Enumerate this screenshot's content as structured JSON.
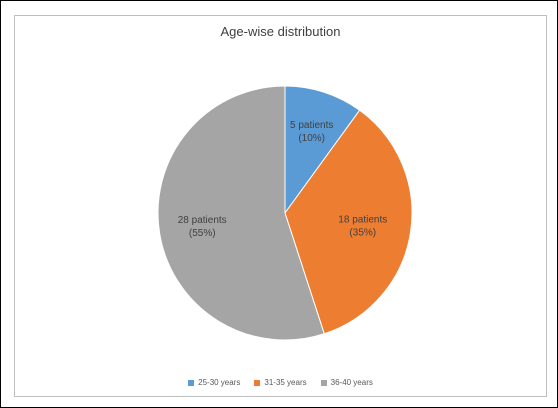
{
  "chart_data": {
    "type": "pie",
    "title": "Age-wise distribution",
    "slices": [
      {
        "name": "25-30 years",
        "value": 10,
        "label_line1": "5 patients",
        "label_line2": "(10%)",
        "color": "#5b9bd5"
      },
      {
        "name": "31-35 years",
        "value": 35,
        "label_line1": "18 patients",
        "label_line2": "(35%)",
        "color": "#ed7d31"
      },
      {
        "name": "36-40 years",
        "value": 55,
        "label_line1": "28 patients",
        "label_line2": "(55%)",
        "color": "#a5a5a5"
      }
    ],
    "legend_position": "bottom"
  }
}
